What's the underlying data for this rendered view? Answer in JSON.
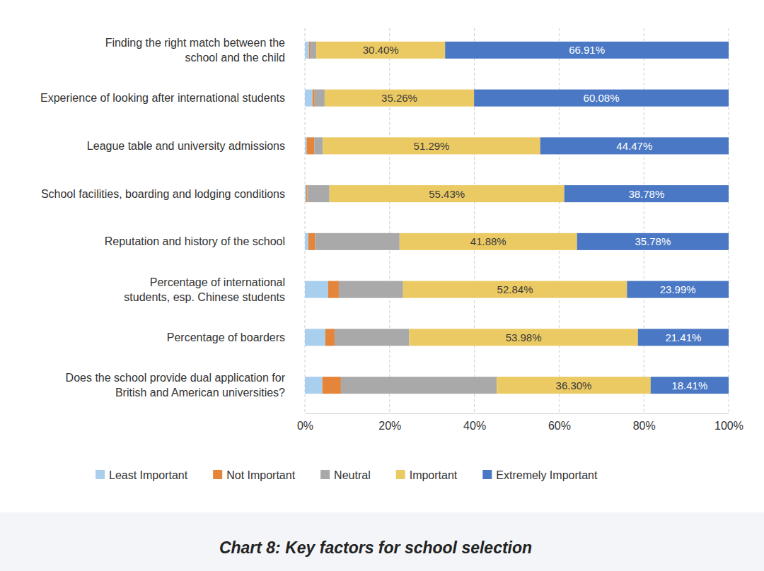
{
  "chart_data": {
    "type": "bar",
    "title": "Chart 8: Key factors for school selection",
    "orientation": "horizontal",
    "stacked": true,
    "grid": true,
    "legend": "bottom",
    "categories": [
      "Finding the right match between the\nschool and the child",
      "Experience of looking after international students",
      "League table and university admissions",
      "School facilities, boarding and lodging conditions",
      "Reputation and history of the school",
      "Percentage of international\nstudents, esp. Chinese students",
      "Percentage of boarders",
      "Does the school provide dual application for\nBritish and American universities?"
    ],
    "series": [
      {
        "name": "Least Important",
        "color": "#a8d0ee",
        "values": [
          1.0,
          1.8,
          0.4,
          0.3,
          0.8,
          5.5,
          4.8,
          4.1
        ]
      },
      {
        "name": "Not Important",
        "color": "#e4853a",
        "values": [
          0.3,
          0.5,
          1.8,
          0.3,
          1.6,
          2.5,
          2.2,
          4.4
        ]
      },
      {
        "name": "Neutral",
        "color": "#a9a9a9",
        "values": [
          1.39,
          2.36,
          2.04,
          5.19,
          19.94,
          15.17,
          17.61,
          36.79
        ]
      },
      {
        "name": "Important",
        "color": "#ecca63",
        "data_labels": true,
        "values": [
          30.4,
          35.26,
          51.29,
          55.43,
          41.88,
          52.84,
          53.98,
          36.3
        ],
        "value_labels": [
          "30.40%",
          "35.26%",
          "51.29%",
          "55.43%",
          "41.88%",
          "52.84%",
          "53.98%",
          "36.30%"
        ]
      },
      {
        "name": "Extremely Important",
        "color": "#4a78c4",
        "data_labels": true,
        "values": [
          66.91,
          60.08,
          44.47,
          38.78,
          35.78,
          23.99,
          21.41,
          18.41
        ],
        "value_labels": [
          "66.91%",
          "60.08%",
          "44.47%",
          "38.78%",
          "35.78%",
          "23.99%",
          "21.41%",
          "18.41%"
        ]
      }
    ],
    "xlim": [
      0,
      100
    ],
    "xticks": [
      {
        "value": 0,
        "label": "0%"
      },
      {
        "value": 20,
        "label": "20%"
      },
      {
        "value": 40,
        "label": "40%"
      },
      {
        "value": 60,
        "label": "60%"
      },
      {
        "value": 80,
        "label": "80%"
      },
      {
        "value": 100,
        "label": "100%"
      }
    ]
  }
}
